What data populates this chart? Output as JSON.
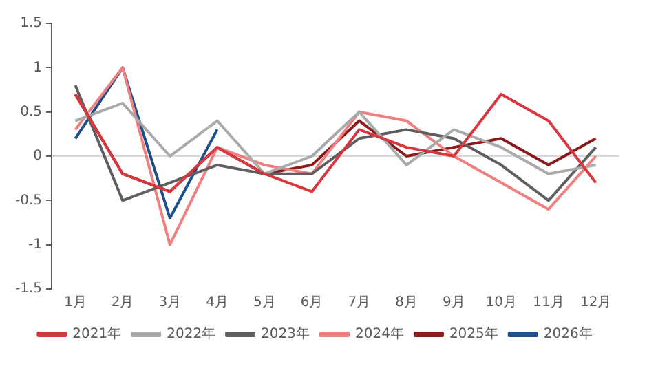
{
  "chart_data": {
    "type": "line",
    "categories": [
      "1月",
      "2月",
      "3月",
      "4月",
      "5月",
      "6月",
      "7月",
      "8月",
      "9月",
      "10月",
      "11月",
      "12月"
    ],
    "series": [
      {
        "name": "2021年",
        "color": "#d9363e",
        "values": [
          0.7,
          -0.2,
          -0.4,
          0.1,
          -0.2,
          -0.4,
          0.3,
          0.1,
          0,
          0.7,
          0.4,
          -0.3
        ]
      },
      {
        "name": "2022年",
        "color": "#aaaaaa",
        "values": [
          0.4,
          0.6,
          0,
          0.4,
          -0.2,
          0,
          0.5,
          -0.1,
          0.3,
          0.1,
          -0.2,
          -0.1
        ]
      },
      {
        "name": "2023年",
        "color": "#5f5f5f",
        "values": [
          0.8,
          -0.5,
          -0.3,
          -0.1,
          -0.2,
          -0.2,
          0.2,
          0.3,
          0.2,
          -0.1,
          -0.5,
          0.1
        ]
      },
      {
        "name": "2024年",
        "color": "#f08080",
        "values": [
          0.3,
          1,
          -1,
          0.1,
          -0.1,
          -0.2,
          0.5,
          0.4,
          0,
          -0.3,
          -0.6,
          0
        ]
      },
      {
        "name": "2025年",
        "color": "#8b1a1a",
        "values": [
          0.7,
          -0.2,
          -0.4,
          0.1,
          -0.2,
          -0.1,
          0.4,
          0,
          0.1,
          0.2,
          -0.1,
          0.2
        ]
      },
      {
        "name": "2026年",
        "color": "#1f4e8c",
        "values": [
          0.2,
          1,
          -0.7,
          0.3,
          null,
          null,
          null,
          null,
          null,
          null,
          null,
          null
        ]
      }
    ],
    "ylim": [
      -1.5,
      1.5
    ],
    "yticks": [
      -1.5,
      -1,
      -0.5,
      0,
      0.5,
      1,
      1.5
    ],
    "grid": false,
    "ref_lines": [
      {
        "axis": "y",
        "value": 0,
        "color": "#d9d9d9"
      }
    ],
    "legend": "bottom",
    "marker": "none",
    "line_style": "solid"
  }
}
